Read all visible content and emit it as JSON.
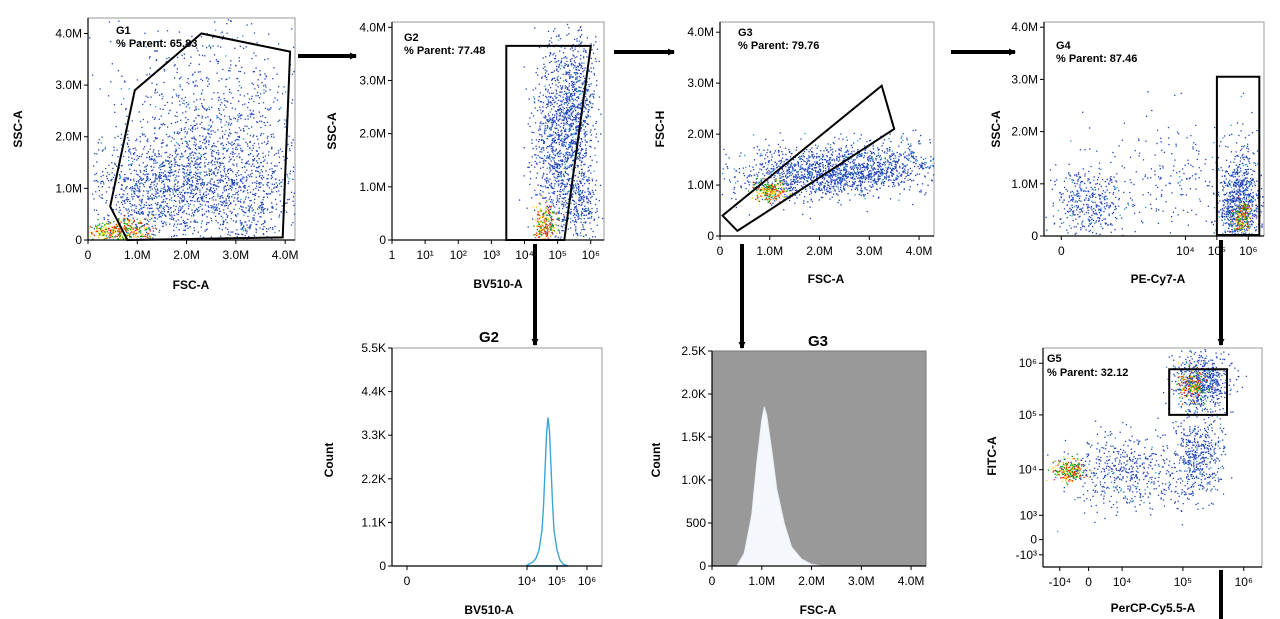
{
  "chart_data": [
    {
      "id": "p1",
      "type": "scatter",
      "title": "",
      "xlabel": "FSC-A",
      "ylabel": "SSC-A",
      "xlim": [
        0,
        4.2
      ],
      "ylim": [
        0,
        4.3
      ],
      "xticks": [
        {
          "v": 0,
          "l": "0"
        },
        {
          "v": 1,
          "l": "1.0M"
        },
        {
          "v": 2,
          "l": "2.0M"
        },
        {
          "v": 3,
          "l": "3.0M"
        },
        {
          "v": 4,
          "l": "4.0M"
        }
      ],
      "yticks": [
        {
          "v": 0,
          "l": "0"
        },
        {
          "v": 1,
          "l": "1.0M"
        },
        {
          "v": 2,
          "l": "2.0M"
        },
        {
          "v": 3,
          "l": "3.0M"
        },
        {
          "v": 4,
          "l": "4.0M"
        }
      ],
      "gate": {
        "name": "G1",
        "stat_label": "% Parent: 65.83",
        "parent_percent": 65.83,
        "polygon": [
          [
            0.8,
            0
          ],
          [
            0.45,
            0.65
          ],
          [
            0.95,
            2.9
          ],
          [
            2.3,
            4.0
          ],
          [
            4.1,
            3.65
          ],
          [
            3.95,
            0.05
          ]
        ]
      }
    },
    {
      "id": "p2",
      "type": "scatter",
      "title": "",
      "xlabel": "BV510-A",
      "ylabel": "SSC-A",
      "xscale": "log",
      "xlim": [
        0,
        6.4
      ],
      "ylim": [
        0,
        4.1
      ],
      "xticks": [
        {
          "v": 0,
          "l": "1"
        },
        {
          "v": 1,
          "l": "10¹"
        },
        {
          "v": 2,
          "l": "10²"
        },
        {
          "v": 3,
          "l": "10³"
        },
        {
          "v": 4,
          "l": "10⁴"
        },
        {
          "v": 5,
          "l": "10⁵"
        },
        {
          "v": 6,
          "l": "10⁶"
        }
      ],
      "yticks": [
        {
          "v": 0,
          "l": "0"
        },
        {
          "v": 1,
          "l": "1.0M"
        },
        {
          "v": 2,
          "l": "2.0M"
        },
        {
          "v": 3,
          "l": "3.0M"
        },
        {
          "v": 4,
          "l": "4.0M"
        }
      ],
      "gate": {
        "name": "G2",
        "stat_label": "% Parent: 77.48",
        "parent_percent": 77.48,
        "polygon": [
          [
            3.45,
            0
          ],
          [
            3.45,
            3.65
          ],
          [
            6.0,
            3.65
          ],
          [
            5.2,
            0
          ]
        ]
      }
    },
    {
      "id": "p3",
      "type": "scatter",
      "title": "",
      "xlabel": "FSC-A",
      "ylabel": "FSC-H",
      "xlim": [
        0,
        4.3
      ],
      "ylim": [
        0,
        4.2
      ],
      "xticks": [
        {
          "v": 0,
          "l": "0"
        },
        {
          "v": 1,
          "l": "1.0M"
        },
        {
          "v": 2,
          "l": "2.0M"
        },
        {
          "v": 3,
          "l": "3.0M"
        },
        {
          "v": 4,
          "l": "4.0M"
        }
      ],
      "yticks": [
        {
          "v": 0,
          "l": "0"
        },
        {
          "v": 1,
          "l": "1.0M"
        },
        {
          "v": 2,
          "l": "2.0M"
        },
        {
          "v": 3,
          "l": "3.0M"
        },
        {
          "v": 4,
          "l": "4.0M"
        }
      ],
      "gate": {
        "name": "G3",
        "stat_label": "% Parent: 79.76",
        "parent_percent": 79.76,
        "polygon": [
          [
            0.05,
            0.4
          ],
          [
            0.35,
            0.1
          ],
          [
            3.5,
            2.1
          ],
          [
            3.25,
            2.95
          ]
        ]
      }
    },
    {
      "id": "p4",
      "type": "scatter",
      "title": "",
      "xlabel": "PE-Cy7-A",
      "ylabel": "SSC-A",
      "xscale": "biexponential",
      "xlim": [
        -0.5,
        6.5
      ],
      "ylim": [
        0,
        4.1
      ],
      "xticks": [
        {
          "v": 0.05,
          "l": "0"
        },
        {
          "v": 4,
          "l": "10⁴"
        },
        {
          "v": 5,
          "l": "10⁵"
        },
        {
          "v": 6,
          "l": "10⁶"
        }
      ],
      "yticks": [
        {
          "v": 0,
          "l": "0"
        },
        {
          "v": 1,
          "l": "1.0M"
        },
        {
          "v": 2,
          "l": "2.0M"
        },
        {
          "v": 3,
          "l": "3.0M"
        },
        {
          "v": 4,
          "l": "4.0M"
        }
      ],
      "gate": {
        "name": "G4",
        "stat_label": "% Parent: 87.46",
        "parent_percent": 87.46,
        "polygon": [
          [
            5.0,
            0.02
          ],
          [
            5.0,
            3.05
          ],
          [
            6.35,
            3.05
          ],
          [
            6.35,
            0.02
          ]
        ]
      }
    },
    {
      "id": "h1",
      "type": "area",
      "title": "G2",
      "xlabel": "BV510-A",
      "ylabel": "Count",
      "xscale": "biexponential",
      "xlim": [
        -0.5,
        6.5
      ],
      "ylim": [
        0,
        5.5
      ],
      "xticks": [
        {
          "v": 0,
          "l": "0"
        },
        {
          "v": 4,
          "l": "10⁴"
        },
        {
          "v": 5,
          "l": "10⁵"
        },
        {
          "v": 6,
          "l": "10⁶"
        }
      ],
      "yticks": [
        {
          "v": 0,
          "l": "0"
        },
        {
          "v": 1.1,
          "l": "1.1K"
        },
        {
          "v": 2.2,
          "l": "2.2K"
        },
        {
          "v": 3.3,
          "l": "3.3K"
        },
        {
          "v": 4.4,
          "l": "4.4K"
        },
        {
          "v": 5.5,
          "l": "5.5K"
        }
      ],
      "series": [
        {
          "x": [
            4.0,
            4.2,
            4.3,
            4.4,
            4.5,
            4.55,
            4.6,
            4.65,
            4.7,
            4.75,
            4.8,
            4.85,
            4.9,
            5.0,
            5.1,
            5.2,
            5.35
          ],
          "y": [
            0.02,
            0.1,
            0.2,
            0.4,
            0.9,
            1.5,
            2.4,
            3.3,
            3.75,
            3.4,
            2.5,
            1.6,
            0.9,
            0.4,
            0.15,
            0.05,
            0.01
          ]
        }
      ]
    },
    {
      "id": "h2",
      "type": "area",
      "title": "G3",
      "xlabel": "FSC-A",
      "ylabel": "Count",
      "xlim": [
        0,
        4.3
      ],
      "ylim": [
        0,
        2.5
      ],
      "xticks": [
        {
          "v": 0,
          "l": "0"
        },
        {
          "v": 1,
          "l": "1.0M"
        },
        {
          "v": 2,
          "l": "2.0M"
        },
        {
          "v": 3,
          "l": "3.0M"
        },
        {
          "v": 4,
          "l": "4.0M"
        }
      ],
      "yticks": [
        {
          "v": 0,
          "l": "0"
        },
        {
          "v": 0.5,
          "l": "500"
        },
        {
          "v": 1.0,
          "l": "1.0K"
        },
        {
          "v": 1.5,
          "l": "1.5K"
        },
        {
          "v": 2.0,
          "l": "2.0K"
        },
        {
          "v": 2.5,
          "l": "2.5K"
        }
      ],
      "series": [
        {
          "x": [
            0.5,
            0.65,
            0.8,
            0.9,
            1.0,
            1.05,
            1.1,
            1.2,
            1.3,
            1.45,
            1.6,
            1.8,
            2.0,
            2.2
          ],
          "y": [
            0.0,
            0.15,
            0.6,
            1.2,
            1.7,
            1.85,
            1.75,
            1.35,
            0.9,
            0.5,
            0.22,
            0.08,
            0.02,
            0.0
          ]
        }
      ]
    },
    {
      "id": "p5",
      "type": "scatter",
      "title": "",
      "xlabel": "PerCP-Cy5.5-A",
      "ylabel": "FITC-A",
      "xscale": "biexponential",
      "yscale": "biexponential",
      "xlim": [
        -0.6,
        6.6
      ],
      "ylim": [
        -0.6,
        6.6
      ],
      "xticks": [
        {
          "v": -0.05,
          "l": "-10⁴"
        },
        {
          "v": 0.9,
          "l": "0"
        },
        {
          "v": 2.0,
          "l": "10⁴"
        },
        {
          "v": 4.0,
          "l": "10⁵"
        },
        {
          "v": 6.0,
          "l": "10⁶"
        }
      ],
      "yticks": [
        {
          "v": -0.2,
          "l": "-10³"
        },
        {
          "v": 0.3,
          "l": "0"
        },
        {
          "v": 1.1,
          "l": "10³"
        },
        {
          "v": 2.6,
          "l": "10⁴"
        },
        {
          "v": 4.4,
          "l": "10⁵"
        },
        {
          "v": 6.1,
          "l": "10⁶"
        }
      ],
      "gate": {
        "name": "G5",
        "stat_label": "% Parent: 32.12",
        "parent_percent": 32.12,
        "polygon": [
          [
            3.55,
            4.4
          ],
          [
            3.55,
            5.9
          ],
          [
            5.45,
            5.9
          ],
          [
            5.45,
            4.4
          ]
        ]
      }
    }
  ]
}
